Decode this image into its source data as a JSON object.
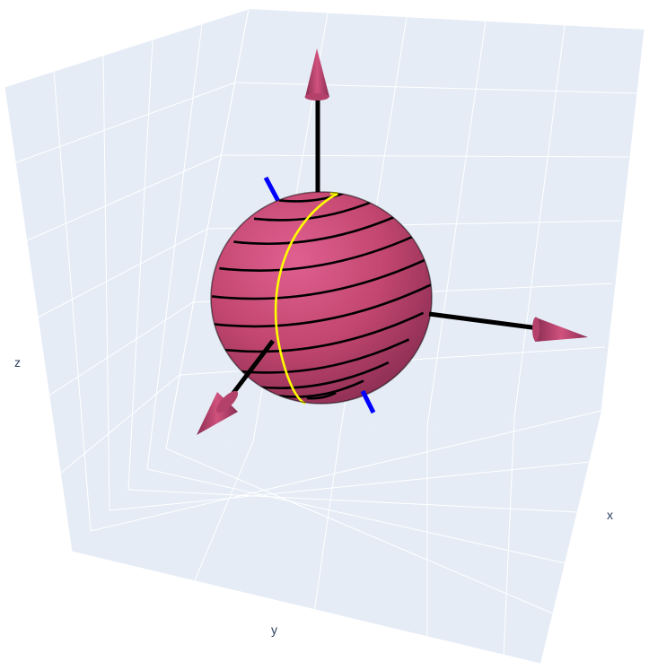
{
  "scene": {
    "axis_labels": {
      "x": "x",
      "y": "y",
      "z": "z"
    },
    "background_color": "#e5ecf6",
    "grid_color": "#ffffff",
    "text_color": "#2a3f5f"
  },
  "objects": {
    "sphere_color": "#c2466f",
    "sphere_highlight_color": "#e06090",
    "sphere_shadow_color": "#8a2d52",
    "coil_color": "#000000",
    "meridian_color": "#ffff00",
    "spin_axis_color": "#0000ff",
    "coordinate_axes_color": "#000000",
    "arrowhead_color": "#c2466f"
  }
}
